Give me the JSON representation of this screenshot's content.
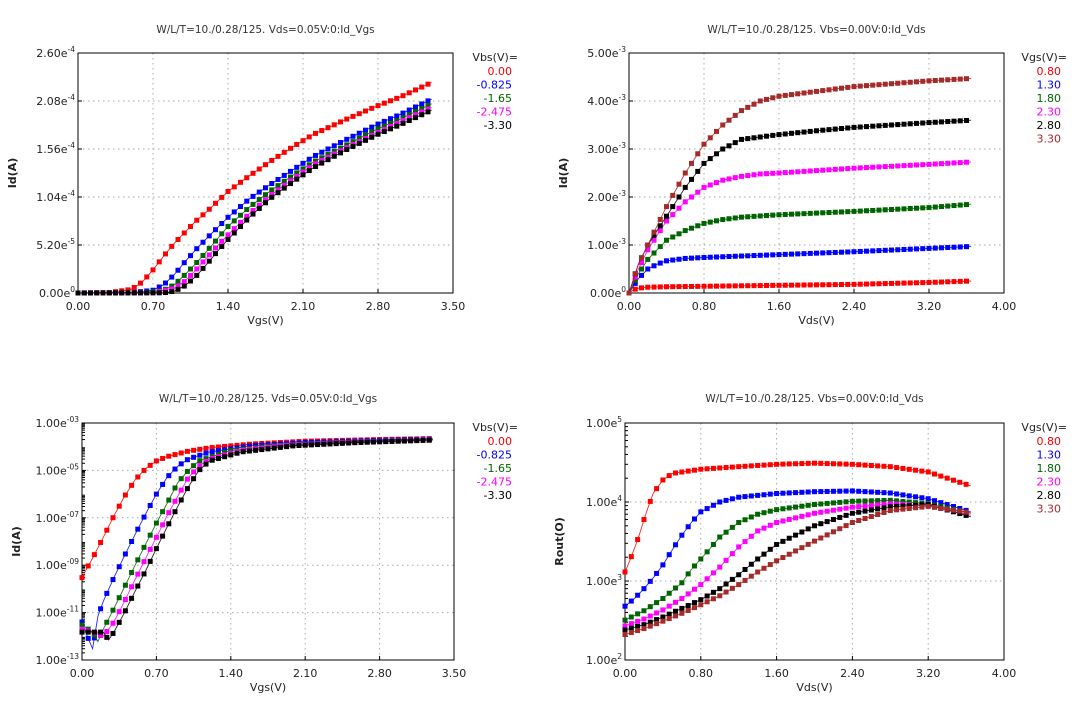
{
  "chart_data": [
    {
      "id": "idvgs-linear",
      "type": "scatter",
      "title": "W/L/T=10./0.28/125.  Vds=0.05V:0:Id_Vgs",
      "xlabel": "Vgs(V)",
      "ylabel": "Id(A)",
      "xscale": "linear",
      "yscale": "linear",
      "xlim": [
        0.0,
        3.5
      ],
      "ylim": [
        0.0,
        0.00026
      ],
      "x_ticks": [
        "0.00",
        "0.70",
        "1.40",
        "2.10",
        "2.80",
        "3.50"
      ],
      "y_ticks": [
        [
          "0.00e",
          "0"
        ],
        [
          "5.20e",
          "-5"
        ],
        [
          "1.04e",
          "-4"
        ],
        [
          "1.56e",
          "-4"
        ],
        [
          "2.08e",
          "-4"
        ],
        [
          "2.60e",
          "-4"
        ]
      ],
      "grid": true,
      "legend_title": "Vbs(V)=",
      "legend_position": "right",
      "markers": "measured (squares)",
      "lines": "model (thin lines)",
      "series": [
        {
          "name": "0.00",
          "color": "#ff0000",
          "x": [
            0.0,
            0.3,
            0.5,
            0.6,
            0.7,
            0.8,
            0.9,
            1.0,
            1.1,
            1.2,
            1.4,
            1.6,
            1.8,
            2.0,
            2.2,
            2.5,
            2.8,
            3.0,
            3.3
          ],
          "values": [
            0,
            5e-07,
            4e-06,
            1.2e-05,
            2.5e-05,
            4e-05,
            5.4e-05,
            6.6e-05,
            7.8e-05,
            8.8e-05,
            0.00011,
            0.000127,
            0.000143,
            0.000158,
            0.000172,
            0.000188,
            0.000203,
            0.000212,
            0.000228
          ]
        },
        {
          "name": "-0.825",
          "color": "#0000ff",
          "x": [
            0.0,
            0.5,
            0.7,
            0.8,
            0.9,
            1.0,
            1.1,
            1.2,
            1.4,
            1.6,
            1.8,
            2.0,
            2.2,
            2.5,
            2.8,
            3.0,
            3.3
          ],
          "values": [
            0,
            3e-07,
            3e-06,
            9e-06,
            2e-05,
            3.4e-05,
            4.7e-05,
            5.9e-05,
            8.2e-05,
            0.000102,
            0.000118,
            0.000133,
            0.000148,
            0.000166,
            0.000183,
            0.000193,
            0.00021
          ]
        },
        {
          "name": "-1.65",
          "color": "#006400",
          "x": [
            0.0,
            0.6,
            0.8,
            0.9,
            1.0,
            1.1,
            1.2,
            1.4,
            1.6,
            1.8,
            2.0,
            2.2,
            2.5,
            2.8,
            3.0,
            3.3
          ],
          "values": [
            0,
            2e-07,
            3e-06,
            9e-06,
            2e-05,
            3.2e-05,
            4.5e-05,
            7.2e-05,
            9.3e-05,
            0.000111,
            0.000127,
            0.000142,
            0.00016,
            0.000178,
            0.000188,
            0.000205
          ]
        },
        {
          "name": "-2.475",
          "color": "#ff00ff",
          "x": [
            0.0,
            0.7,
            0.9,
            1.0,
            1.1,
            1.2,
            1.3,
            1.4,
            1.6,
            1.8,
            2.0,
            2.2,
            2.5,
            2.8,
            3.0,
            3.3
          ],
          "values": [
            0,
            2e-07,
            5e-06,
            1.3e-05,
            2.5e-05,
            3.8e-05,
            5.1e-05,
            6.3e-05,
            8.6e-05,
            0.000106,
            0.000123,
            0.000139,
            0.000157,
            0.000174,
            0.000185,
            0.000201
          ]
        },
        {
          "name": "-3.30",
          "color": "#000000",
          "x": [
            0.0,
            0.8,
            0.9,
            1.0,
            1.1,
            1.2,
            1.3,
            1.4,
            1.6,
            1.8,
            2.0,
            2.2,
            2.5,
            2.8,
            3.0,
            3.3
          ],
          "values": [
            0,
            2e-07,
            2e-06,
            8e-06,
            1.8e-05,
            3.1e-05,
            4.5e-05,
            5.8e-05,
            8.2e-05,
            0.000103,
            0.00012,
            0.000136,
            0.000155,
            0.000172,
            0.000182,
            0.000198
          ]
        }
      ]
    },
    {
      "id": "idvds-linear",
      "type": "scatter",
      "title": "W/L/T=10./0.28/125.  Vbs=0.00V:0:Id_Vds",
      "xlabel": "Vds(V)",
      "ylabel": "Id(A)",
      "xscale": "linear",
      "yscale": "linear",
      "xlim": [
        0.0,
        4.0
      ],
      "ylim": [
        0.0,
        0.005
      ],
      "x_ticks": [
        "0.00",
        "0.80",
        "1.60",
        "2.40",
        "3.20",
        "4.00"
      ],
      "y_ticks": [
        [
          "0.00e",
          "0"
        ],
        [
          "1.00e",
          "-3"
        ],
        [
          "2.00e",
          "-3"
        ],
        [
          "3.00e",
          "-3"
        ],
        [
          "4.00e",
          "-3"
        ],
        [
          "5.00e",
          "-3"
        ]
      ],
      "grid": true,
      "legend_title": "Vgs(V)=",
      "legend_position": "right",
      "markers": "measured (squares)",
      "lines": "model (thin lines)",
      "series": [
        {
          "name": "0.80",
          "color": "#ff0000",
          "x": [
            0.0,
            0.05,
            0.1,
            0.2,
            0.4,
            0.8,
            1.6,
            2.4,
            3.2,
            3.65
          ],
          "values": [
            0,
            7e-05,
            0.0001,
            0.00012,
            0.00013,
            0.00014,
            0.00016,
            0.00018,
            0.00022,
            0.00025
          ]
        },
        {
          "name": "1.30",
          "color": "#0000ff",
          "x": [
            0.0,
            0.05,
            0.1,
            0.2,
            0.3,
            0.4,
            0.6,
            0.8,
            1.2,
            1.6,
            2.4,
            3.2,
            3.65
          ],
          "values": [
            0,
            0.00015,
            0.0003,
            0.0005,
            0.0006,
            0.00067,
            0.00072,
            0.00074,
            0.00077,
            0.0008,
            0.00086,
            0.00093,
            0.00097
          ]
        },
        {
          "name": "1.80",
          "color": "#006400",
          "x": [
            0.0,
            0.1,
            0.2,
            0.3,
            0.4,
            0.5,
            0.6,
            0.8,
            1.0,
            1.2,
            1.6,
            2.4,
            3.2,
            3.65
          ],
          "values": [
            0,
            0.0004,
            0.0007,
            0.0009,
            0.0011,
            0.0012,
            0.0013,
            0.00145,
            0.00153,
            0.00158,
            0.00163,
            0.0017,
            0.00178,
            0.00185
          ]
        },
        {
          "name": "2.30",
          "color": "#ff00ff",
          "x": [
            0.0,
            0.1,
            0.2,
            0.3,
            0.4,
            0.5,
            0.6,
            0.8,
            1.0,
            1.2,
            1.4,
            1.6,
            2.4,
            3.2,
            3.65
          ],
          "values": [
            0,
            0.0005,
            0.0009,
            0.0012,
            0.0015,
            0.0017,
            0.0019,
            0.0022,
            0.00235,
            0.00243,
            0.00248,
            0.0025,
            0.0026,
            0.00268,
            0.00273
          ]
        },
        {
          "name": "2.80",
          "color": "#000000",
          "x": [
            0.0,
            0.1,
            0.2,
            0.3,
            0.4,
            0.6,
            0.8,
            1.0,
            1.2,
            1.4,
            1.6,
            2.0,
            2.4,
            3.2,
            3.65
          ],
          "values": [
            0,
            0.0006,
            0.001,
            0.0013,
            0.0016,
            0.0022,
            0.0027,
            0.003,
            0.0032,
            0.00325,
            0.0033,
            0.00338,
            0.00345,
            0.00355,
            0.0036
          ]
        },
        {
          "name": "3.30",
          "color": "#a52a2a",
          "x": [
            0.0,
            0.1,
            0.2,
            0.3,
            0.4,
            0.6,
            0.8,
            1.0,
            1.2,
            1.4,
            1.6,
            2.0,
            2.4,
            3.2,
            3.65
          ],
          "values": [
            0,
            0.0006,
            0.001,
            0.0014,
            0.0018,
            0.0025,
            0.0031,
            0.0035,
            0.0038,
            0.004,
            0.0041,
            0.0042,
            0.0043,
            0.00442,
            0.00447
          ]
        }
      ]
    },
    {
      "id": "idvgs-log",
      "type": "scatter",
      "title": "W/L/T=10./0.28/125.  Vds=0.05V:0:Id_Vgs",
      "xlabel": "Vgs(V)",
      "ylabel": "Id(A)",
      "xscale": "linear",
      "yscale": "log",
      "xlim": [
        0.0,
        3.5
      ],
      "ylim": [
        1e-13,
        0.001
      ],
      "x_ticks": [
        "0.00",
        "0.70",
        "1.40",
        "2.10",
        "2.80",
        "3.50"
      ],
      "y_ticks": [
        [
          "1.00e",
          "-13"
        ],
        [
          "1.00e",
          "-11"
        ],
        [
          "1.00e",
          "-09"
        ],
        [
          "1.00e",
          "-07"
        ],
        [
          "1.00e",
          "-05"
        ],
        [
          "1.00e",
          "-03"
        ]
      ],
      "grid": true,
      "legend_title": "Vbs(V)=",
      "legend_position": "right",
      "markers": "measured (squares)",
      "lines": "model (thin lines)",
      "series": [
        {
          "name": "0.00",
          "color": "#ff0000",
          "x": [
            0.0,
            0.05,
            0.1,
            0.2,
            0.3,
            0.4,
            0.5,
            0.6,
            0.7,
            0.8,
            1.0,
            1.2,
            1.6,
            2.1,
            2.8,
            3.3
          ],
          "values": [
            3e-10,
            8e-10,
            2e-09,
            1.5e-08,
            1.2e-07,
            8e-07,
            4e-06,
            1.2e-05,
            2.5e-05,
            3.8e-05,
            6.5e-05,
            9e-05,
            0.00013,
            0.00017,
            0.0002,
            0.00022
          ]
        },
        {
          "name": "-0.825",
          "color": "#0000ff",
          "x": [
            0.0,
            0.05,
            0.1,
            0.15,
            0.2,
            0.3,
            0.4,
            0.5,
            0.6,
            0.7,
            0.8,
            0.9,
            1.0,
            1.2,
            1.6,
            2.1,
            2.8,
            3.3
          ],
          "values": [
            4e-12,
            1e-12,
            3e-13,
            7e-12,
            3e-11,
            3e-10,
            2.5e-09,
            2e-08,
            1.5e-07,
            1e-06,
            5e-06,
            1.5e-05,
            3e-05,
            6e-05,
            0.00011,
            0.00015,
            0.000185,
            0.00021
          ]
        },
        {
          "name": "-1.65",
          "color": "#006400",
          "x": [
            0.0,
            0.1,
            0.15,
            0.2,
            0.3,
            0.4,
            0.5,
            0.6,
            0.7,
            0.8,
            0.9,
            1.0,
            1.1,
            1.4,
            1.8,
            2.4,
            3.3
          ],
          "values": [
            3e-12,
            1.5e-12,
            6e-13,
            2e-12,
            1.5e-11,
            1.2e-10,
            1e-09,
            8e-09,
            6e-08,
            4e-07,
            3e-06,
            1e-05,
            2.5e-05,
            7e-05,
            0.00011,
            0.00015,
            0.0002
          ]
        },
        {
          "name": "-2.475",
          "color": "#ff00ff",
          "x": [
            0.0,
            0.1,
            0.2,
            0.3,
            0.4,
            0.5,
            0.6,
            0.7,
            0.8,
            0.9,
            1.0,
            1.1,
            1.2,
            1.5,
            1.9,
            2.5,
            3.3
          ],
          "values": [
            2e-12,
            1.5e-12,
            1e-12,
            4e-12,
            3e-11,
            2.5e-10,
            2e-09,
            1.5e-08,
            1.2e-07,
            8e-07,
            5e-06,
            1.5e-05,
            3e-05,
            7e-05,
            0.00011,
            0.00015,
            0.000195
          ]
        },
        {
          "name": "-3.30",
          "color": "#000000",
          "x": [
            0.0,
            0.05,
            0.1,
            0.2,
            0.25,
            0.3,
            0.4,
            0.5,
            0.6,
            0.7,
            0.8,
            0.9,
            1.0,
            1.1,
            1.2,
            1.5,
            2.0,
            2.6,
            3.3
          ],
          "values": [
            1.5e-12,
            1.5e-12,
            1.5e-12,
            1.5e-12,
            7e-13,
            1.5e-12,
            1e-11,
            8e-11,
            6e-10,
            5e-09,
            4e-08,
            3e-07,
            2e-06,
            1e-05,
            2.5e-05,
            6e-05,
            0.00011,
            0.00015,
            0.00019
          ]
        }
      ]
    },
    {
      "id": "rout-vds-log",
      "type": "scatter",
      "title": "W/L/T=10./0.28/125.  Vbs=0.00V:0:Id_Vds",
      "xlabel": "Vds(V)",
      "ylabel": "Rout(O)",
      "xscale": "linear",
      "yscale": "log",
      "xlim": [
        0.0,
        4.0
      ],
      "ylim": [
        100,
        100000
      ],
      "x_ticks": [
        "0.00",
        "0.80",
        "1.60",
        "2.40",
        "3.20",
        "4.00"
      ],
      "y_ticks": [
        [
          "1.00e",
          "2"
        ],
        [
          "1.00e",
          "3"
        ],
        [
          "1.00e",
          "4"
        ],
        [
          "1.00e",
          "5"
        ]
      ],
      "grid": true,
      "legend_title": "Vgs(V)=",
      "legend_position": "right",
      "markers": "measured (squares)",
      "lines": "model (thin lines)",
      "series": [
        {
          "name": "0.80",
          "color": "#ff0000",
          "x": [
            0.0,
            0.05,
            0.1,
            0.15,
            0.2,
            0.25,
            0.3,
            0.4,
            0.5,
            0.8,
            1.2,
            1.6,
            2.0,
            2.4,
            2.8,
            3.2,
            3.65
          ],
          "values": [
            1300,
            1800,
            2600,
            3800,
            6000,
            9000,
            13000,
            19000,
            23000,
            26000,
            28000,
            30000,
            31000,
            30000,
            28000,
            24000,
            16000
          ]
        },
        {
          "name": "1.30",
          "color": "#0000ff",
          "x": [
            0.0,
            0.1,
            0.2,
            0.3,
            0.4,
            0.5,
            0.6,
            0.7,
            0.8,
            1.0,
            1.2,
            1.6,
            2.0,
            2.4,
            2.8,
            3.2,
            3.65
          ],
          "values": [
            480,
            600,
            800,
            1100,
            1600,
            2500,
            3800,
            5500,
            7500,
            10000,
            11500,
            12800,
            13500,
            13800,
            13000,
            11000,
            7500
          ]
        },
        {
          "name": "1.80",
          "color": "#006400",
          "x": [
            0.0,
            0.2,
            0.4,
            0.6,
            0.7,
            0.8,
            0.9,
            1.0,
            1.2,
            1.4,
            1.6,
            2.0,
            2.4,
            2.8,
            3.2,
            3.65
          ],
          "values": [
            320,
            420,
            600,
            950,
            1400,
            1900,
            2600,
            3600,
            5500,
            7000,
            8000,
            9300,
            10200,
            10500,
            9500,
            7200
          ]
        },
        {
          "name": "2.30",
          "color": "#ff00ff",
          "x": [
            0.0,
            0.2,
            0.4,
            0.6,
            0.8,
            1.0,
            1.2,
            1.4,
            1.6,
            2.0,
            2.4,
            2.8,
            3.2,
            3.65
          ],
          "values": [
            270,
            330,
            430,
            600,
            900,
            1500,
            2700,
            4300,
            5500,
            7200,
            8600,
            9500,
            9000,
            6800
          ]
        },
        {
          "name": "2.80",
          "color": "#000000",
          "x": [
            0.0,
            0.2,
            0.4,
            0.6,
            0.8,
            1.0,
            1.2,
            1.4,
            1.6,
            2.0,
            2.4,
            2.8,
            3.2,
            3.65
          ],
          "values": [
            240,
            280,
            350,
            450,
            580,
            800,
            1200,
            1900,
            2900,
            5000,
            7200,
            8700,
            9300,
            6500
          ]
        },
        {
          "name": "3.30",
          "color": "#a52a2a",
          "x": [
            0.0,
            0.2,
            0.4,
            0.6,
            0.8,
            1.0,
            1.2,
            1.4,
            1.6,
            2.0,
            2.4,
            2.8,
            3.2,
            3.65
          ],
          "values": [
            210,
            250,
            310,
            390,
            500,
            650,
            900,
            1300,
            1800,
            3200,
            5500,
            7800,
            8800,
            7300
          ]
        }
      ]
    }
  ]
}
